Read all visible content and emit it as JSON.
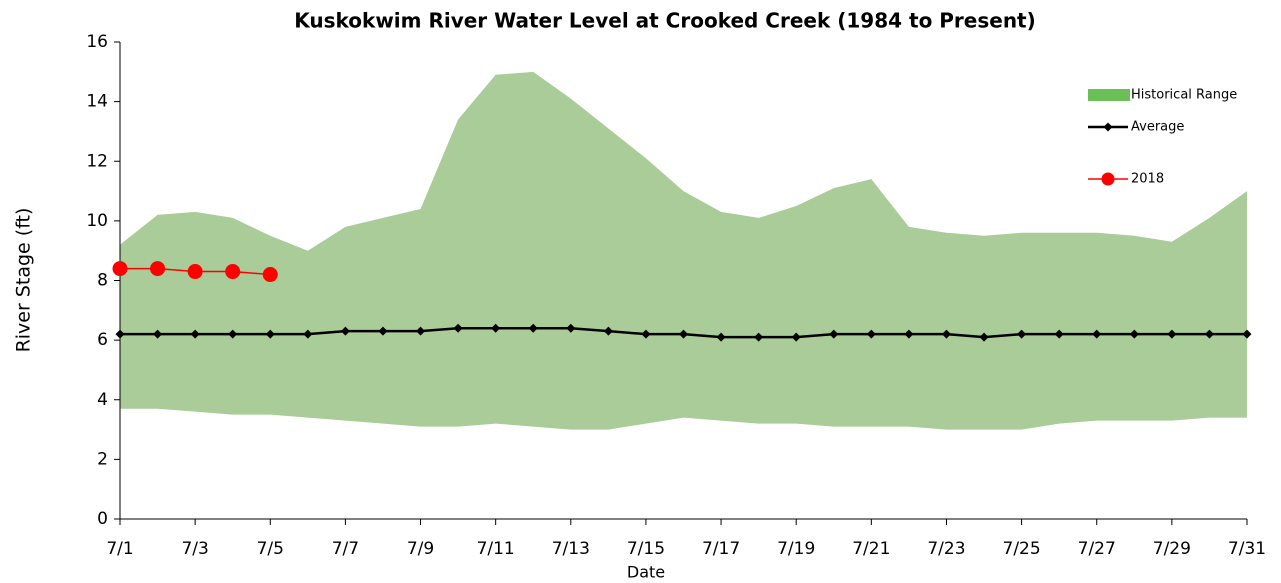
{
  "chart_data": {
    "type": "line",
    "title": "Kuskokwim River Water Level at Crooked Creek (1984 to Present)",
    "x_label": "Date",
    "y_label": "River Stage (ft)",
    "categories": [
      "7/1",
      null,
      "7/3",
      null,
      "7/5",
      null,
      "7/7",
      null,
      "7/9",
      null,
      "7/11",
      null,
      "7/13",
      null,
      "7/15",
      null,
      "7/17",
      null,
      "7/19",
      null,
      "7/21",
      null,
      "7/23",
      null,
      "7/25",
      null,
      "7/27",
      null,
      "7/29",
      null,
      "7/31"
    ],
    "ylim": [
      0,
      16
    ],
    "yticks": [
      0,
      2,
      4,
      6,
      8,
      10,
      12,
      14,
      16
    ],
    "legend": "upper-right",
    "series": [
      {
        "name": "Historical Range",
        "kind": "range",
        "color": "#a9cc98",
        "legend_color": "#6abf59",
        "values": [
          9.2,
          10.2,
          10.3,
          10.1,
          9.5,
          9.0,
          9.8,
          10.1,
          10.4,
          13.4,
          14.9,
          15.0,
          14.1,
          13.1,
          12.1,
          11.0,
          10.3,
          10.1,
          10.5,
          11.1,
          11.4,
          9.8,
          9.6,
          9.5,
          9.6,
          9.6,
          9.6,
          9.5,
          9.3,
          10.1,
          11.0
        ],
        "lows": [
          3.7,
          3.7,
          3.6,
          3.5,
          3.5,
          3.4,
          3.3,
          3.2,
          3.1,
          3.1,
          3.2,
          3.1,
          3.0,
          3.0,
          3.2,
          3.4,
          3.3,
          3.2,
          3.2,
          3.1,
          3.1,
          3.1,
          3.0,
          3.0,
          3.0,
          3.2,
          3.3,
          3.3,
          3.3,
          3.4,
          3.4
        ]
      },
      {
        "name": "Average",
        "kind": "line",
        "marker": "diamond",
        "color": "#000000",
        "values": [
          6.2,
          6.2,
          6.2,
          6.2,
          6.2,
          6.2,
          6.3,
          6.3,
          6.3,
          6.4,
          6.4,
          6.4,
          6.4,
          6.3,
          6.2,
          6.2,
          6.1,
          6.1,
          6.1,
          6.2,
          6.2,
          6.2,
          6.2,
          6.1,
          6.2,
          6.2,
          6.2,
          6.2,
          6.2,
          6.2,
          6.2
        ]
      },
      {
        "name": "2018",
        "kind": "line",
        "marker": "circle",
        "color": "#ff0000",
        "values": [
          8.4,
          8.4,
          8.3,
          8.3,
          8.2,
          null,
          null,
          null,
          null,
          null,
          null,
          null,
          null,
          null,
          null,
          null,
          null,
          null,
          null,
          null,
          null,
          null,
          null,
          null,
          null,
          null,
          null,
          null,
          null,
          null,
          null
        ]
      }
    ]
  }
}
